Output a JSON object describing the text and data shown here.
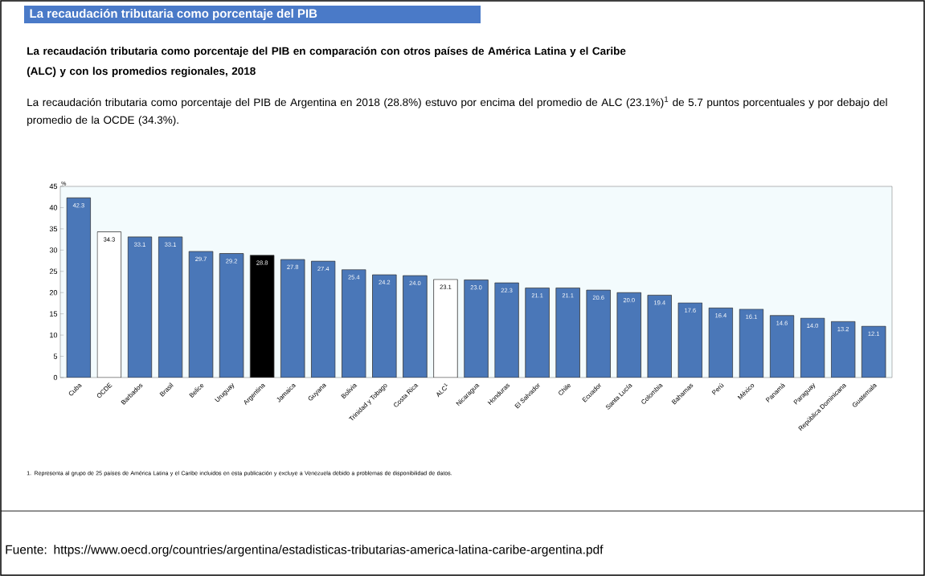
{
  "chart_data": {
    "type": "bar",
    "title": "La recaudación tributaria como porcentaje del PIB",
    "subtitle": "La recaudación tributaria como porcentaje del PIB en comparación con otros países de América Latina y el Caribe (ALC) y con los promedios regionales, 2018",
    "ylabel": "%",
    "categories": [
      "Cuba",
      "OCDE",
      "Barbados",
      "Brasil",
      "Belice",
      "Uruguay",
      "Argentina",
      "Jamaica",
      "Guyana",
      "Bolivia",
      "Trinidad y Tobago",
      "Costa Rica",
      "ALC$^{1}$",
      "Nicaragua",
      "Honduras",
      "El Salvador",
      "Chile",
      "Ecuador",
      "Santa Lucía",
      "Colombia",
      "Bahamas",
      "Perú",
      "México",
      "Panamá",
      "Paraguay",
      "República Dominicana",
      "Guatemala"
    ],
    "values": [
      42.3,
      34.3,
      33.1,
      33.1,
      29.7,
      29.2,
      28.8,
      27.8,
      27.4,
      25.4,
      24.2,
      24.0,
      23.1,
      23.0,
      22.3,
      21.1,
      21.1,
      20.6,
      20.0,
      19.4,
      17.6,
      16.4,
      16.1,
      14.6,
      14.0,
      13.2,
      12.1
    ],
    "value_labels": [
      "42.3",
      "34.3",
      "33.1",
      "33.1",
      "29.7",
      "29.2",
      "28.8",
      "27.8",
      "27.4",
      "25.4",
      "24.2",
      "24.0",
      "23.1",
      "23.0",
      "22.3",
      "21.1",
      "21.1",
      "20.6",
      "20.0",
      "19.4",
      "17.6",
      "16.4",
      "16.1",
      "14.6",
      "14.0",
      "13.2",
      "12.1"
    ],
    "colors": [
      "#4a77b8",
      "#ffffff",
      "#4a77b8",
      "#4a77b8",
      "#4a77b8",
      "#4a77b8",
      "#000000",
      "#4a77b8",
      "#4a77b8",
      "#4a77b8",
      "#4a77b8",
      "#4a77b8",
      "#ffffff",
      "#4a77b8",
      "#4a77b8",
      "#4a77b8",
      "#4a77b8",
      "#4a77b8",
      "#4a77b8",
      "#4a77b8",
      "#4a77b8",
      "#4a77b8",
      "#4a77b8",
      "#4a77b8",
      "#4a77b8",
      "#4a77b8",
      "#4a77b8"
    ],
    "ylim": [
      0,
      45
    ],
    "yticks": [
      0,
      5,
      10,
      15,
      20,
      25,
      30,
      35,
      40,
      45
    ],
    "grid": false,
    "annotations": [
      "La recaudación tributaria como porcentaje del PIB de Argentina en 2018 (28.8%) estuvo por encima del promedio de ALC (23.1%)$^{1}$ de 5.7 puntos porcentuales  y por debajo del promedio de la OCDE (34.3%).",
      "1. Representa al grupo de 25 países de América Latina y el Caribe incluidos en esta publicación y excluye a Venezuela debido a problemas de disponibilidad de datos.",
      "Fuente: https://www.oecd.org/countries/argentina/estadisticas-tributarias-america-latina-caribe-argentina.pdf"
    ]
  }
}
